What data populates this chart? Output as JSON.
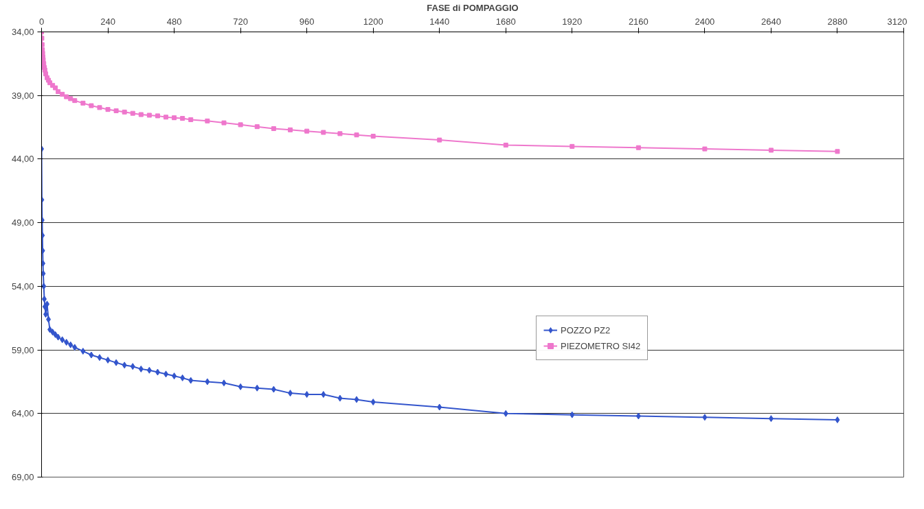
{
  "chart_data": {
    "type": "line",
    "xlabel": "FASE di POMPAGGIO",
    "xlim": [
      0,
      3120
    ],
    "xticks": [
      0,
      240,
      480,
      720,
      960,
      1200,
      1440,
      1680,
      1920,
      2160,
      2400,
      2640,
      2880,
      3120
    ],
    "ylim": [
      69,
      34
    ],
    "yticks": [
      {
        "value": 34,
        "label": "34,00"
      },
      {
        "value": 39,
        "label": "39,00"
      },
      {
        "value": 44,
        "label": "44,00"
      },
      {
        "value": 49,
        "label": "49,00"
      },
      {
        "value": 54,
        "label": "54,00"
      },
      {
        "value": 59,
        "label": "59,00"
      },
      {
        "value": 64,
        "label": "64,00"
      },
      {
        "value": 69,
        "label": "69,00"
      }
    ],
    "x": [
      0,
      1,
      2,
      3,
      4,
      5,
      6,
      8,
      10,
      12,
      15,
      20,
      25,
      30,
      40,
      50,
      60,
      75,
      90,
      105,
      120,
      150,
      180,
      210,
      240,
      270,
      300,
      330,
      360,
      390,
      420,
      450,
      480,
      510,
      540,
      600,
      660,
      720,
      780,
      840,
      900,
      960,
      1020,
      1080,
      1140,
      1200,
      1440,
      1680,
      1920,
      2160,
      2400,
      2640,
      2880
    ],
    "grid": "y",
    "legend": "center right",
    "line_style": "solid",
    "series": [
      {
        "name": "POZZO PZ2",
        "color": "#3355cc",
        "marker": "diamond",
        "values": [
          43.2,
          47.2,
          48.8,
          50.0,
          51.2,
          52.2,
          53.0,
          54.0,
          55.0,
          55.6,
          56.2,
          55.4,
          56.6,
          57.4,
          57.6,
          57.8,
          58.0,
          58.2,
          58.4,
          58.6,
          58.8,
          59.1,
          59.4,
          59.6,
          59.8,
          60.0,
          60.2,
          60.3,
          60.5,
          60.6,
          60.75,
          60.9,
          61.05,
          61.2,
          61.4,
          61.5,
          61.6,
          61.9,
          62.0,
          62.1,
          62.4,
          62.5,
          62.5,
          62.8,
          62.9,
          63.1,
          63.5,
          64.0,
          64.1,
          64.2,
          64.3,
          64.4,
          64.5
        ]
      },
      {
        "name": "PIEZOMETRO SI42",
        "color": "#ee77cc",
        "marker": "square",
        "values": [
          34.0,
          34.5,
          35.0,
          35.4,
          35.7,
          36.0,
          36.2,
          36.5,
          36.8,
          37.0,
          37.3,
          37.6,
          37.8,
          38.0,
          38.2,
          38.4,
          38.7,
          38.9,
          39.1,
          39.25,
          39.4,
          39.6,
          39.8,
          39.95,
          40.1,
          40.2,
          40.3,
          40.4,
          40.5,
          40.55,
          40.6,
          40.7,
          40.75,
          40.8,
          40.9,
          41.0,
          41.15,
          41.3,
          41.45,
          41.6,
          41.7,
          41.8,
          41.9,
          42.0,
          42.1,
          42.2,
          42.5,
          42.9,
          43.0,
          43.1,
          43.2,
          43.3,
          43.4
        ]
      }
    ]
  }
}
